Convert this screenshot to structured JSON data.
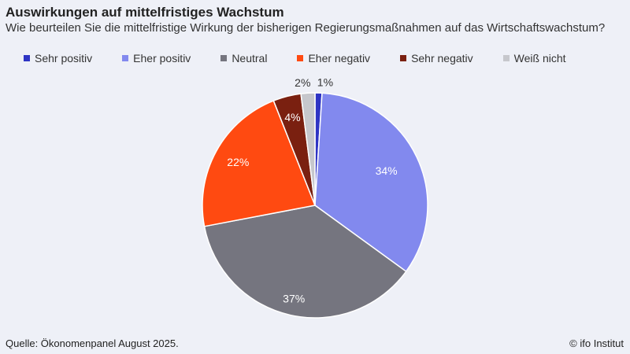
{
  "header": {
    "title": "Auswirkungen auf mittelfristiges Wachstum",
    "subtitle": "Wie beurteilen Sie die mittelfristige Wirkung der bisherigen Regierungsmaßnahmen auf das Wirtschaftswachstum?"
  },
  "footer": {
    "source": "Quelle: Ökonomenpanel August 2025.",
    "brand": "© ifo Institut"
  },
  "chart_data": {
    "type": "pie",
    "title": "Auswirkungen auf mittelfristiges Wachstum",
    "subtitle": "Wie beurteilen Sie die mittelfristige Wirkung der bisherigen Regierungsmaßnahmen auf das Wirtschaftswachstum?",
    "legend_position": "top-left",
    "slices": [
      {
        "label": "Sehr positiv",
        "value": 1,
        "display": "1%",
        "color": "#2e34c4"
      },
      {
        "label": "Eher positiv",
        "value": 34,
        "display": "34%",
        "color": "#8289ee"
      },
      {
        "label": "Neutral",
        "value": 37,
        "display": "37%",
        "color": "#75757f"
      },
      {
        "label": "Eher negativ",
        "value": 22,
        "display": "22%",
        "color": "#ff4a11"
      },
      {
        "label": "Sehr negativ",
        "value": 4,
        "display": "4%",
        "color": "#7a2010"
      },
      {
        "label": "Weiß nicht",
        "value": 2,
        "display": "2%",
        "color": "#c6c7cc"
      }
    ]
  }
}
